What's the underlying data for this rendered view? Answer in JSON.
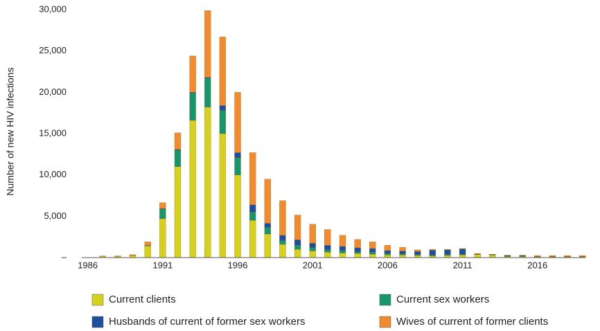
{
  "chart_data": {
    "type": "stacked_bar",
    "y_label": "Number of new HIV infections",
    "x": [
      1987,
      1988,
      1989,
      1990,
      1991,
      1992,
      1993,
      1994,
      1995,
      1996,
      1997,
      1998,
      1999,
      2000,
      2001,
      2002,
      2003,
      2004,
      2005,
      2006,
      2007,
      2008,
      2009,
      2010,
      2011,
      2012,
      2013,
      2014,
      2015,
      2016,
      2017,
      2018,
      2019
    ],
    "xlim": [
      1985.6,
      2019.2
    ],
    "xticks": [
      1986,
      1991,
      1996,
      2001,
      2006,
      2011,
      2016
    ],
    "ylim": [
      0,
      30000
    ],
    "yticks": [
      {
        "value": 0,
        "label": "–"
      },
      {
        "value": 5000,
        "label": "5,000"
      },
      {
        "value": 10000,
        "label": "10,000"
      },
      {
        "value": 15000,
        "label": "15,000"
      },
      {
        "value": 20000,
        "label": "20,000"
      },
      {
        "value": 25000,
        "label": "25,000"
      },
      {
        "value": 30000,
        "label": "30,000"
      }
    ],
    "series": [
      {
        "name": "Current clients",
        "color": "#d6d11c",
        "values": [
          150,
          150,
          250,
          1400,
          4700,
          11000,
          16600,
          18200,
          15000,
          10000,
          4500,
          2850,
          1600,
          1000,
          800,
          650,
          550,
          500,
          400,
          300,
          300,
          250,
          200,
          250,
          300,
          350,
          300,
          100,
          100,
          80,
          80,
          80,
          80
        ]
      },
      {
        "name": "Current sex workers",
        "color": "#17966c",
        "values": [
          10,
          10,
          20,
          100,
          1200,
          2000,
          3300,
          3500,
          2800,
          2100,
          1000,
          800,
          450,
          500,
          400,
          300,
          300,
          200,
          250,
          200,
          150,
          100,
          100,
          100,
          100,
          50,
          50,
          120,
          120,
          30,
          30,
          30,
          30
        ]
      },
      {
        "name": "Husbands of current of former sex workers",
        "color": "#1d4f9e",
        "values": [
          0,
          0,
          0,
          0,
          50,
          100,
          100,
          100,
          600,
          600,
          900,
          500,
          650,
          650,
          550,
          550,
          500,
          500,
          450,
          350,
          350,
          400,
          600,
          600,
          650,
          50,
          30,
          50,
          50,
          40,
          40,
          40,
          40
        ]
      },
      {
        "name": "Wives of current of former clients",
        "color": "#f28a2e",
        "values": [
          40,
          40,
          80,
          400,
          700,
          2000,
          4400,
          8100,
          8300,
          7300,
          6300,
          5350,
          4200,
          3000,
          2300,
          1900,
          1350,
          1000,
          800,
          650,
          450,
          200,
          100,
          50,
          50,
          50,
          20,
          30,
          30,
          100,
          100,
          100,
          100
        ]
      }
    ]
  }
}
